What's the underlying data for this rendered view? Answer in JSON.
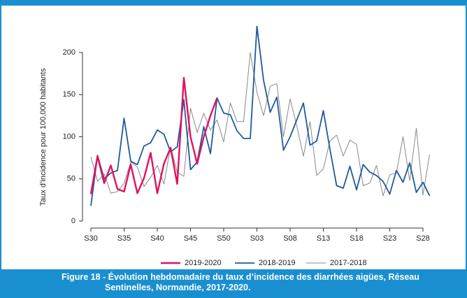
{
  "chart_data": {
    "type": "line",
    "caption": "Figure 18 - Évolution hebdomadaire du taux d’incidence des diarrhées aigües, Réseau Sentinelles, Normandie, 2017-2020.",
    "ylabel": "Taux d’incidence pour 100,000 habitants",
    "categories": [
      "S30",
      null,
      null,
      null,
      null,
      "S35",
      null,
      null,
      null,
      null,
      "S40",
      null,
      null,
      null,
      null,
      "S45",
      null,
      null,
      null,
      null,
      "S50",
      null,
      null,
      null,
      null,
      "S03",
      null,
      null,
      null,
      null,
      "S08",
      null,
      null,
      null,
      null,
      "S13",
      null,
      null,
      null,
      null,
      "S18",
      null,
      null,
      null,
      null,
      "S23",
      null,
      null,
      null,
      null,
      "S28",
      null
    ],
    "ylim": [
      0,
      200
    ],
    "yticks": [
      0,
      50,
      100,
      150,
      200
    ],
    "series": [
      {
        "name": "2019-2020",
        "color": "#e0115f",
        "width": 2.4,
        "values": [
          32,
          77,
          45,
          66,
          38,
          35,
          67,
          33,
          51,
          81,
          33,
          68,
          87,
          44,
          170,
          100,
          68,
          100,
          125,
          146,
          null,
          null,
          null,
          null,
          null,
          null,
          null,
          null,
          null,
          null,
          null,
          null,
          null,
          null,
          null,
          null,
          null,
          null,
          null,
          null,
          null,
          null,
          null,
          null,
          null,
          null,
          null,
          null,
          null,
          null,
          null,
          null
        ]
      },
      {
        "name": "2018-2019",
        "color": "#1f5a9c",
        "width": 1.8,
        "values": [
          18,
          78,
          50,
          57,
          60,
          122,
          71,
          67,
          89,
          93,
          108,
          103,
          82,
          88,
          144,
          61,
          70,
          112,
          80,
          146,
          128,
          126,
          107,
          98,
          98,
          231,
          167,
          129,
          147,
          84,
          100,
          120,
          140,
          90,
          95,
          131,
          85,
          42,
          39,
          65,
          37,
          67,
          58,
          54,
          47,
          32,
          60,
          46,
          69,
          34,
          46,
          30
        ]
      },
      {
        "name": "2017-2018",
        "color": "#888888",
        "width": 1,
        "values": [
          76,
          47,
          56,
          33,
          35,
          45,
          70,
          64,
          41,
          52,
          66,
          44,
          88,
          58,
          53,
          134,
          105,
          128,
          108,
          120,
          94,
          140,
          118,
          118,
          200,
          153,
          125,
          160,
          163,
          100,
          145,
          113,
          77,
          118,
          54,
          62,
          95,
          102,
          77,
          96,
          91,
          42,
          45,
          66,
          30,
          55,
          57,
          100,
          48,
          110,
          31,
          79
        ]
      }
    ]
  }
}
